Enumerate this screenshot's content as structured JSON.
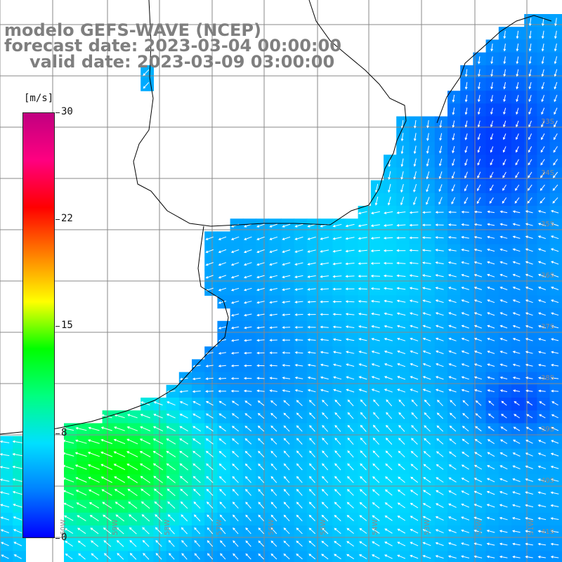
{
  "title": {
    "line1": "modelo GEFS-WAVE (NCEP)",
    "line2": "forecast date: 2023-03-04 00:00:00",
    "line3": "valid date: 2023-03-09 03:00:00"
  },
  "colorbar": {
    "unit": "[m/s]",
    "ticks": [
      "30",
      "22",
      "15",
      "8",
      "0"
    ],
    "stops": [
      "#0000ff",
      "#0080ff",
      "#00e0ff",
      "#00ff80",
      "#00ff00",
      "#ffff00",
      "#ff8000",
      "#ff0000",
      "#ff0080",
      "#c00080"
    ]
  },
  "map": {
    "land_color": "#ffffff",
    "grid_color": "#888888",
    "arrow_color": "#ffffff",
    "lat_labels": [
      "33S",
      "34S",
      "35S",
      "36S",
      "37S",
      "38S",
      "39S",
      "40S",
      "41S"
    ],
    "lon_labels": [
      "60W",
      "59W",
      "58W",
      "57W",
      "56W",
      "55W",
      "54W",
      "53W",
      "52W",
      "51W"
    ]
  }
}
